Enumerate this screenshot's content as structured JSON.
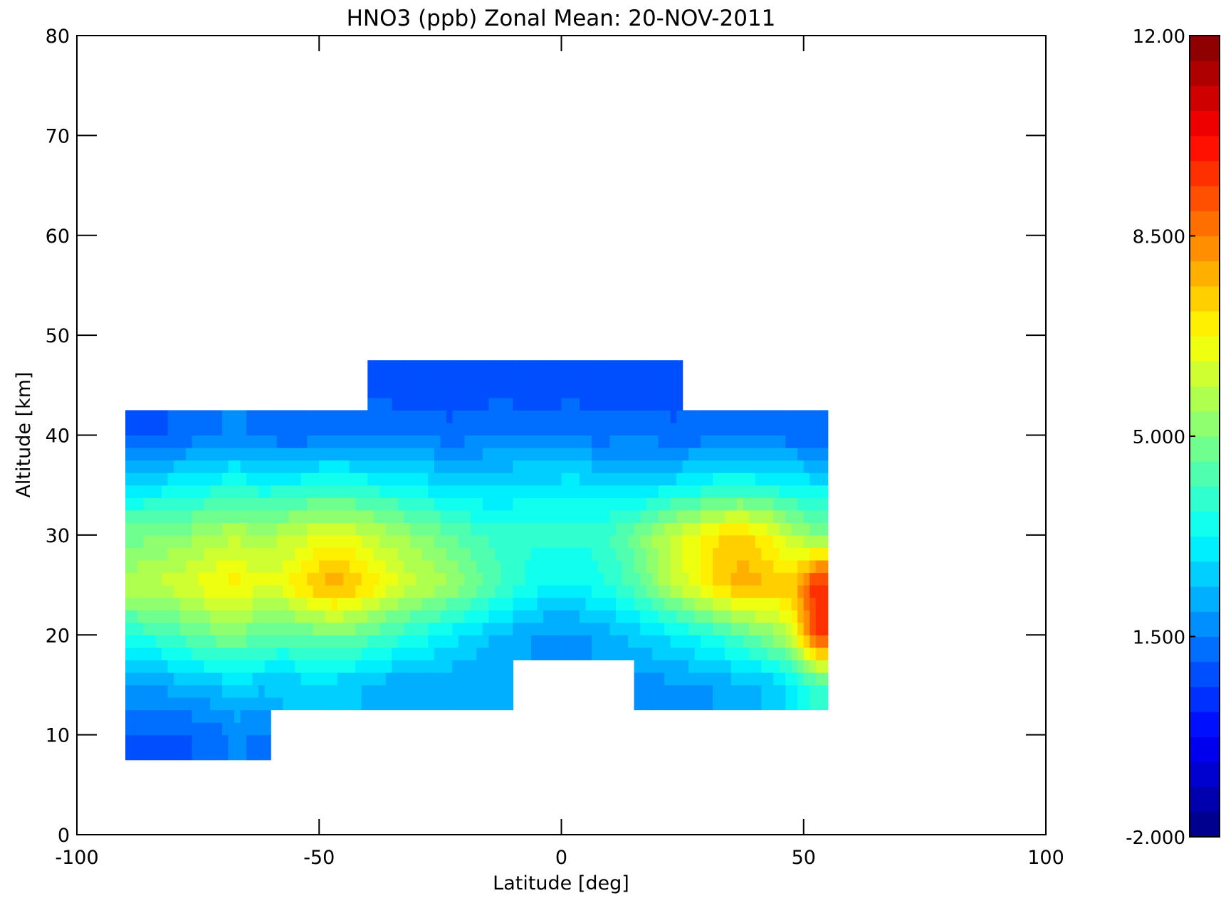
{
  "chart_data": {
    "type": "heatmap",
    "title": "HNO3 (ppb) Zonal Mean: 20-NOV-2011",
    "xlabel": "Latitude [deg]",
    "ylabel": "Altitude [km]",
    "xlim": [
      -100,
      100
    ],
    "ylim": [
      0,
      80
    ],
    "x_ticks": [
      -100,
      -50,
      0,
      50,
      100
    ],
    "x_tick_labels": [
      "-100",
      "-50",
      "0",
      "50",
      "100"
    ],
    "y_ticks": [
      0,
      10,
      20,
      30,
      40,
      50,
      60,
      70,
      80
    ],
    "y_tick_labels": [
      "0",
      "10",
      "20",
      "30",
      "40",
      "50",
      "60",
      "70",
      "80"
    ],
    "grid": false,
    "colorbar": {
      "min": -2.0,
      "max": 12.0,
      "levels": 32,
      "ticks": [
        -2.0,
        1.5,
        5.0,
        8.5,
        12.0
      ],
      "tick_labels": [
        "-2.000",
        "1.500",
        "5.000",
        "8.500",
        "12.00"
      ],
      "colormap": [
        "#00007f",
        "#0000ff",
        "#007fff",
        "#00ffff",
        "#7fff7f",
        "#ffff00",
        "#ff7f00",
        "#ff0000",
        "#7f0000"
      ]
    },
    "lat": [
      -87.5,
      -82.5,
      -77.5,
      -72.5,
      -67.5,
      -62.5,
      -57.5,
      -52.5,
      -47.5,
      -42.5,
      -37.5,
      -32.5,
      -27.5,
      -22.5,
      -17.5,
      -12.5,
      -7.5,
      -2.5,
      2.5,
      7.5,
      12.5,
      17.5,
      22.5,
      27.5,
      32.5,
      37.5,
      42.5,
      47.5,
      52.5
    ],
    "alt": [
      10,
      15,
      20,
      25,
      30,
      35,
      40,
      45
    ],
    "values": [
      [
        1.0,
        1.0,
        1.0,
        1.2,
        1.6,
        1.4,
        null,
        null,
        null,
        null,
        null,
        null,
        null,
        null,
        null,
        null,
        null,
        null,
        null,
        null,
        null,
        null,
        null,
        null,
        null,
        null,
        null,
        null,
        null
      ],
      [
        2.0,
        2.0,
        2.2,
        2.4,
        2.6,
        2.5,
        2.4,
        2.6,
        2.6,
        2.4,
        2.2,
        2.0,
        2.0,
        2.0,
        2.0,
        2.0,
        null,
        null,
        null,
        null,
        null,
        1.8,
        1.8,
        1.8,
        2.0,
        2.2,
        2.4,
        3.0,
        4.0
      ],
      [
        3.8,
        4.0,
        4.4,
        4.8,
        5.0,
        4.6,
        4.4,
        4.6,
        4.8,
        4.6,
        4.2,
        3.8,
        3.4,
        3.0,
        2.6,
        2.3,
        2.0,
        1.8,
        1.8,
        2.0,
        2.3,
        2.6,
        3.0,
        3.4,
        3.8,
        4.4,
        5.0,
        6.0,
        9.5
      ],
      [
        5.8,
        6.0,
        6.2,
        6.6,
        7.0,
        6.4,
        6.6,
        7.4,
        8.0,
        7.6,
        6.8,
        6.2,
        5.8,
        5.4,
        4.8,
        4.2,
        3.6,
        3.2,
        3.2,
        3.5,
        4.0,
        4.8,
        5.8,
        6.6,
        7.4,
        8.0,
        7.6,
        7.4,
        9.8
      ],
      [
        4.8,
        5.0,
        5.2,
        5.6,
        5.8,
        5.6,
        5.8,
        6.2,
        6.4,
        6.2,
        5.8,
        5.4,
        5.0,
        4.6,
        4.2,
        3.9,
        3.8,
        3.8,
        3.8,
        3.9,
        4.4,
        5.2,
        6.0,
        6.6,
        7.2,
        7.4,
        6.8,
        5.8,
        5.2
      ],
      [
        3.0,
        3.0,
        3.2,
        3.4,
        3.6,
        3.4,
        3.4,
        3.6,
        3.8,
        3.6,
        3.4,
        3.2,
        3.0,
        2.8,
        2.7,
        2.8,
        3.0,
        3.0,
        3.0,
        3.0,
        2.8,
        2.8,
        3.0,
        3.2,
        3.6,
        3.6,
        3.4,
        3.2,
        3.0
      ],
      [
        1.0,
        1.0,
        1.2,
        1.4,
        1.6,
        1.4,
        1.2,
        1.2,
        1.4,
        1.4,
        1.6,
        1.4,
        1.4,
        1.2,
        1.4,
        1.6,
        1.4,
        1.4,
        1.6,
        1.2,
        1.4,
        1.4,
        1.2,
        1.2,
        1.4,
        1.4,
        1.4,
        1.2,
        1.2
      ],
      [
        null,
        null,
        null,
        null,
        null,
        null,
        null,
        null,
        null,
        null,
        0.8,
        0.8,
        0.7,
        0.8,
        0.8,
        0.8,
        0.8,
        0.8,
        0.8,
        0.8,
        0.8,
        0.8,
        0.8,
        null,
        null,
        null,
        null,
        null,
        null
      ]
    ]
  }
}
